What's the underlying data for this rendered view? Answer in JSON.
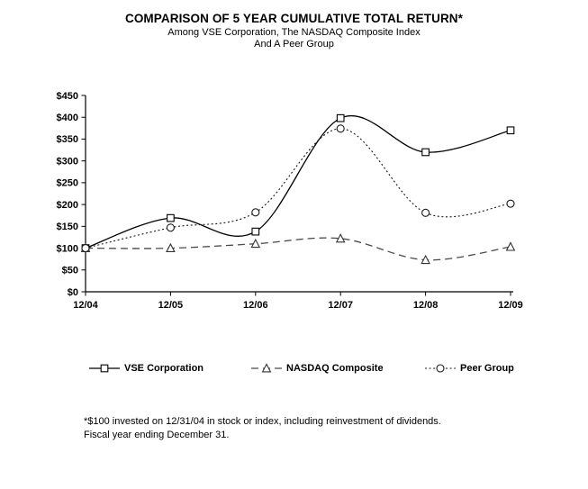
{
  "title": "COMPARISON OF 5 YEAR CUMULATIVE TOTAL RETURN*",
  "subtitle_line1": "Among VSE Corporation, The NASDAQ Composite Index",
  "subtitle_line2": "And A Peer Group",
  "footnote": {
    "line1": "*$100 invested on 12/31/04 in stock or index, including reinvestment of dividends.",
    "line2": "Fiscal year ending December 31."
  },
  "colors": {
    "background": "#ffffff",
    "text": "#000000",
    "axis": "#000000"
  },
  "chart_data": {
    "type": "line",
    "title": "COMPARISON OF 5 YEAR CUMULATIVE TOTAL RETURN*",
    "subtitle": "Among VSE Corporation, The NASDAQ Composite Index And A Peer Group",
    "categories": [
      "12/04",
      "12/05",
      "12/06",
      "12/07",
      "12/08",
      "12/09"
    ],
    "series": [
      {
        "name": "VSE Corporation",
        "line": "solid",
        "marker": "square",
        "color": "#000000",
        "marker_color": "#000000",
        "values": [
          100,
          169,
          138,
          398,
          320,
          370
        ]
      },
      {
        "name": "NASDAQ Composite",
        "line": "dashed",
        "marker": "triangle",
        "color": "#4a4a4a",
        "marker_color": "#333333",
        "values": [
          100,
          100,
          110,
          122,
          73,
          103
        ]
      },
      {
        "name": "Peer Group",
        "line": "dotted",
        "marker": "circle",
        "color": "#1a1a1a",
        "marker_color": "#1a1a1a",
        "values": [
          100,
          147,
          182,
          374,
          181,
          202
        ]
      }
    ],
    "xlabel": "",
    "ylabel": "",
    "ylim": [
      0,
      450
    ],
    "ytick_step": 50,
    "ytick_prefix": "$",
    "grid": false,
    "smooth": true,
    "legend_position": "bottom"
  }
}
